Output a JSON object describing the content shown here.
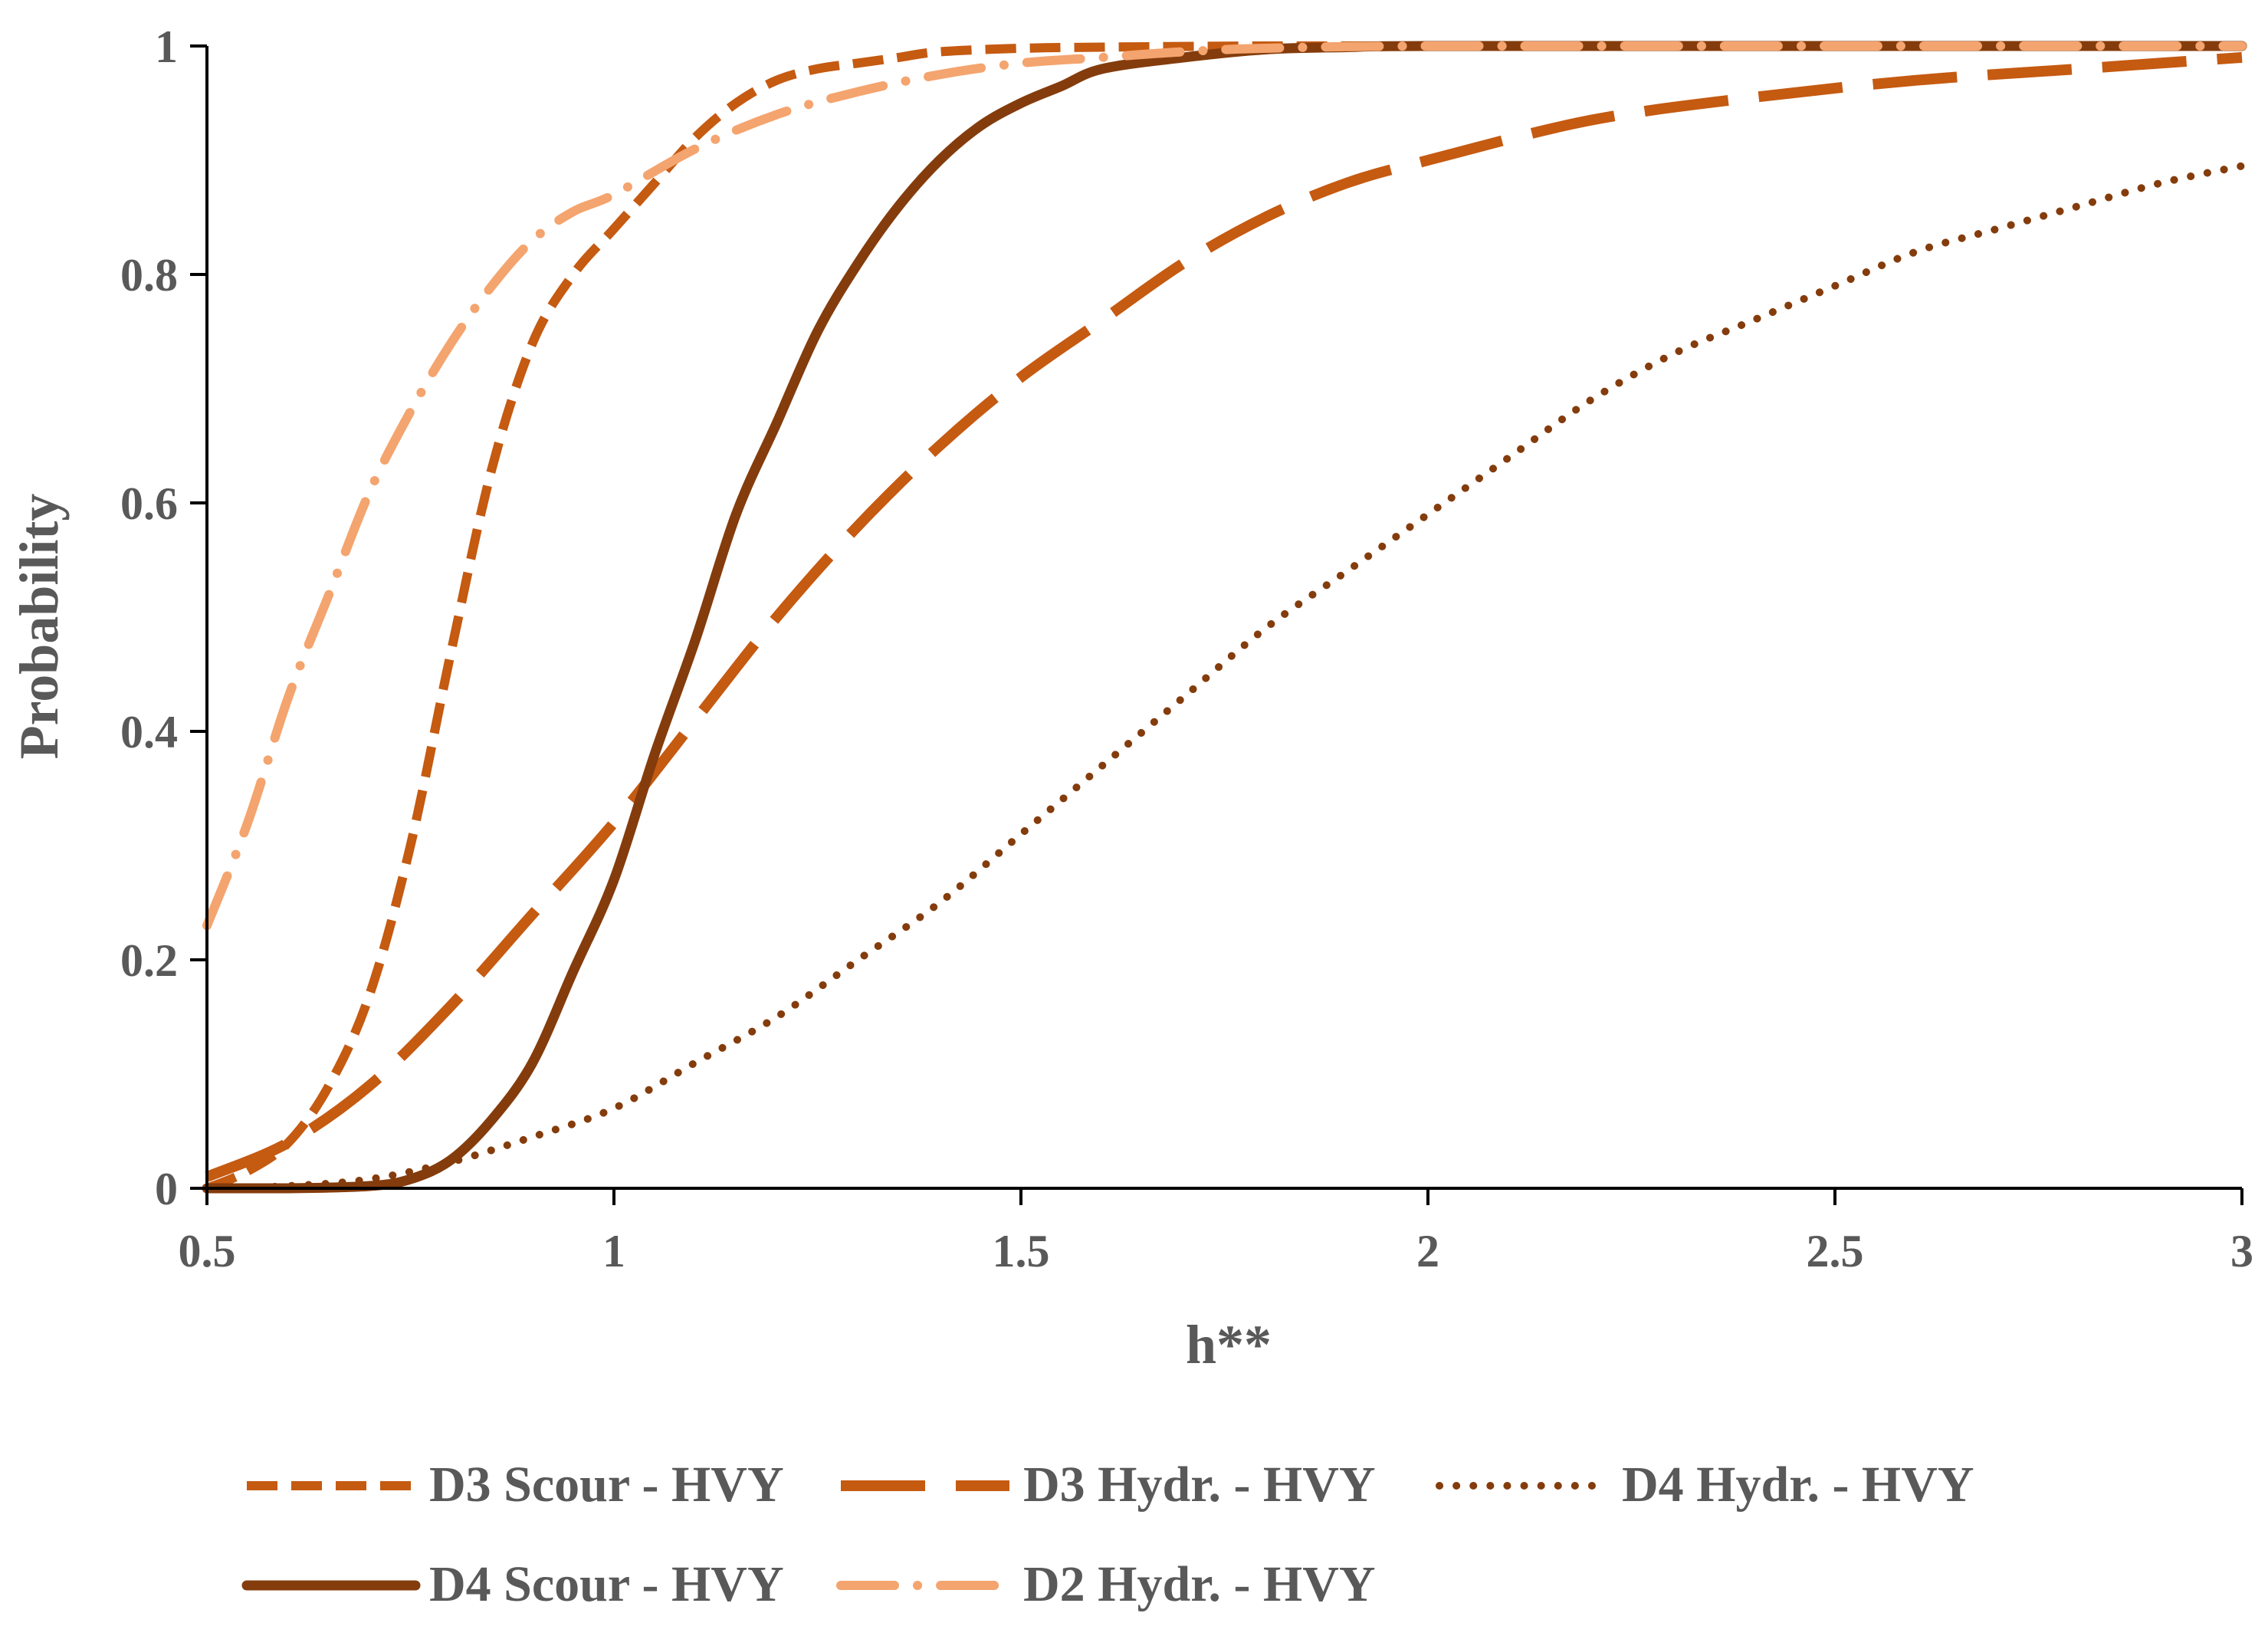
{
  "chart_data": {
    "type": "line",
    "title": "",
    "xlabel": "h**",
    "ylabel": "Probability",
    "xlim": [
      0.5,
      3
    ],
    "ylim": [
      0,
      1
    ],
    "xticks": [
      0.5,
      1,
      1.5,
      2,
      2.5,
      3
    ],
    "xtick_labels": [
      "0.5",
      "1",
      "1.5",
      "2",
      "2.5",
      "3"
    ],
    "yticks": [
      0,
      0.2,
      0.4,
      0.6,
      0.8,
      1
    ],
    "ytick_labels": [
      "0",
      "0.2",
      "0.4",
      "0.6",
      "0.8",
      "1"
    ],
    "grid": false,
    "legend_position": "bottom",
    "series": [
      {
        "name": "D3 Scour - HVY",
        "color": "#C55A11",
        "style": "dashed",
        "x": [
          0.5,
          0.55,
          0.6,
          0.65,
          0.7,
          0.75,
          0.8,
          0.85,
          0.9,
          0.95,
          1.0,
          1.05,
          1.1,
          1.15,
          1.2,
          1.25,
          1.3,
          1.35,
          1.4,
          1.5,
          1.6,
          1.8,
          2.0,
          2.5,
          3.0
        ],
        "y": [
          0.0,
          0.015,
          0.04,
          0.09,
          0.17,
          0.3,
          0.47,
          0.63,
          0.74,
          0.8,
          0.84,
          0.88,
          0.92,
          0.95,
          0.97,
          0.98,
          0.985,
          0.99,
          0.995,
          0.998,
          0.999,
          1.0,
          1.0,
          1.0,
          1.0
        ]
      },
      {
        "name": "D3 Hydr. - HVY",
        "color": "#C55A11",
        "style": "long-dash",
        "x": [
          0.5,
          0.6,
          0.7,
          0.8,
          0.9,
          1.0,
          1.1,
          1.2,
          1.3,
          1.4,
          1.5,
          1.6,
          1.7,
          1.8,
          1.9,
          2.0,
          2.2,
          2.4,
          2.6,
          2.8,
          3.0
        ],
        "y": [
          0.01,
          0.04,
          0.09,
          0.16,
          0.24,
          0.32,
          0.41,
          0.5,
          0.58,
          0.65,
          0.71,
          0.76,
          0.81,
          0.85,
          0.88,
          0.9,
          0.935,
          0.955,
          0.97,
          0.98,
          0.99
        ]
      },
      {
        "name": "D4 Hydr. - HVY",
        "color": "#843C0C",
        "style": "dotted",
        "x": [
          0.5,
          0.6,
          0.7,
          0.8,
          0.9,
          1.0,
          1.1,
          1.2,
          1.3,
          1.4,
          1.5,
          1.6,
          1.7,
          1.8,
          1.9,
          2.0,
          2.1,
          2.2,
          2.3,
          2.4,
          2.5,
          2.6,
          2.7,
          2.8,
          2.9,
          3.0
        ],
        "y": [
          0.0,
          0.002,
          0.008,
          0.023,
          0.045,
          0.07,
          0.11,
          0.15,
          0.2,
          0.25,
          0.31,
          0.37,
          0.43,
          0.49,
          0.54,
          0.59,
          0.64,
          0.69,
          0.73,
          0.76,
          0.79,
          0.82,
          0.84,
          0.86,
          0.88,
          0.895
        ]
      },
      {
        "name": "D4 Scour - HVY",
        "color": "#843C0C",
        "style": "solid",
        "x": [
          0.5,
          0.6,
          0.7,
          0.75,
          0.8,
          0.85,
          0.9,
          0.95,
          1.0,
          1.05,
          1.1,
          1.15,
          1.2,
          1.25,
          1.3,
          1.35,
          1.4,
          1.45,
          1.5,
          1.55,
          1.6,
          1.7,
          1.8,
          1.9,
          2.0,
          2.5,
          3.0
        ],
        "y": [
          0.0,
          0.0,
          0.002,
          0.008,
          0.025,
          0.06,
          0.11,
          0.19,
          0.27,
          0.38,
          0.48,
          0.59,
          0.67,
          0.75,
          0.81,
          0.86,
          0.9,
          0.93,
          0.95,
          0.965,
          0.98,
          0.99,
          0.997,
          0.999,
          1.0,
          1.0,
          1.0
        ]
      },
      {
        "name": "D2 Hydr. - HVY",
        "color": "#F4A46E",
        "style": "dash-dot",
        "x": [
          0.5,
          0.55,
          0.6,
          0.65,
          0.7,
          0.75,
          0.8,
          0.85,
          0.9,
          0.95,
          1.0,
          1.1,
          1.2,
          1.3,
          1.4,
          1.5,
          1.6,
          1.7,
          1.8,
          2.0,
          2.5,
          3.0
        ],
        "y": [
          0.23,
          0.32,
          0.43,
          0.52,
          0.61,
          0.68,
          0.74,
          0.79,
          0.83,
          0.855,
          0.87,
          0.91,
          0.94,
          0.96,
          0.975,
          0.985,
          0.99,
          0.995,
          0.998,
          1.0,
          1.0,
          1.0
        ]
      }
    ]
  }
}
